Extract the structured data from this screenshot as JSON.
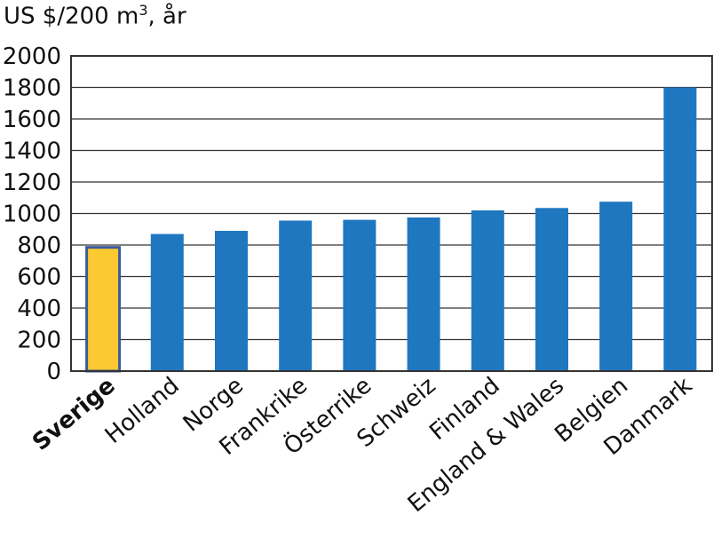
{
  "chart_data": {
    "type": "bar",
    "ylabel_prefix": "US $/200 m",
    "ylabel_superscript": "3",
    "ylabel_suffix": ", år",
    "ylim": [
      0,
      2000
    ],
    "yticks": [
      "0",
      "200",
      "400",
      "600",
      "800",
      "1000",
      "1200",
      "1400",
      "1600",
      "1800",
      "2000"
    ],
    "grid": true,
    "categories": [
      "Sverige",
      "Holland",
      "Norge",
      "Frankrike",
      "Österrike",
      "Schweiz",
      "Finland",
      "England & Wales",
      "Belgien",
      "Danmark"
    ],
    "values": [
      785,
      870,
      890,
      955,
      960,
      975,
      1020,
      1035,
      1075,
      1800
    ],
    "highlight_index": 0,
    "colors": {
      "bar": "#1f77c0",
      "highlight": "#fcc931",
      "highlight_border": "#3b5a9a",
      "frame": "#333333",
      "grid": "#333333"
    }
  }
}
